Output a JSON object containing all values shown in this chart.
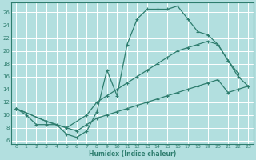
{
  "xlabel": "Humidex (Indice chaleur)",
  "bg_color": "#b2dfdf",
  "grid_color": "#ffffff",
  "line_color": "#2e7d6e",
  "xlim": [
    -0.5,
    23.5
  ],
  "ylim": [
    5.5,
    27.5
  ],
  "xticks": [
    0,
    1,
    2,
    3,
    4,
    5,
    6,
    7,
    8,
    9,
    10,
    11,
    12,
    13,
    14,
    15,
    16,
    17,
    18,
    19,
    20,
    21,
    22,
    23
  ],
  "yticks": [
    6,
    8,
    10,
    12,
    14,
    16,
    18,
    20,
    22,
    24,
    26
  ],
  "line1_x": [
    0,
    1,
    2,
    3,
    4,
    5,
    6,
    7,
    8,
    9,
    10,
    11,
    12,
    13,
    14,
    15,
    16,
    17,
    18,
    19,
    20,
    21,
    22
  ],
  "line1_y": [
    11,
    10,
    8.5,
    8.5,
    8.5,
    7,
    6.5,
    7.5,
    10.5,
    17,
    13,
    21,
    25,
    26.5,
    26.5,
    26.5,
    27,
    25,
    23,
    22.5,
    21,
    18.5,
    16.5
  ],
  "line2_x": [
    0,
    3,
    5,
    7,
    8,
    9,
    10,
    11,
    12,
    13,
    14,
    15,
    16,
    17,
    18,
    19,
    20,
    21,
    22,
    23
  ],
  "line2_y": [
    11,
    9,
    8,
    10,
    12,
    13,
    14,
    15,
    16,
    17,
    18,
    19,
    20,
    20.5,
    21,
    21.5,
    21,
    18.5,
    16,
    14.5
  ],
  "line3_x": [
    0,
    3,
    5,
    6,
    7,
    8,
    9,
    10,
    11,
    12,
    13,
    14,
    15,
    16,
    17,
    18,
    19,
    20,
    21,
    22,
    23
  ],
  "line3_y": [
    11,
    9,
    8,
    7.5,
    8.5,
    9.5,
    10,
    10.5,
    11,
    11.5,
    12,
    12.5,
    13,
    13.5,
    14,
    14.5,
    15,
    15.5,
    13.5,
    14,
    14.5
  ]
}
